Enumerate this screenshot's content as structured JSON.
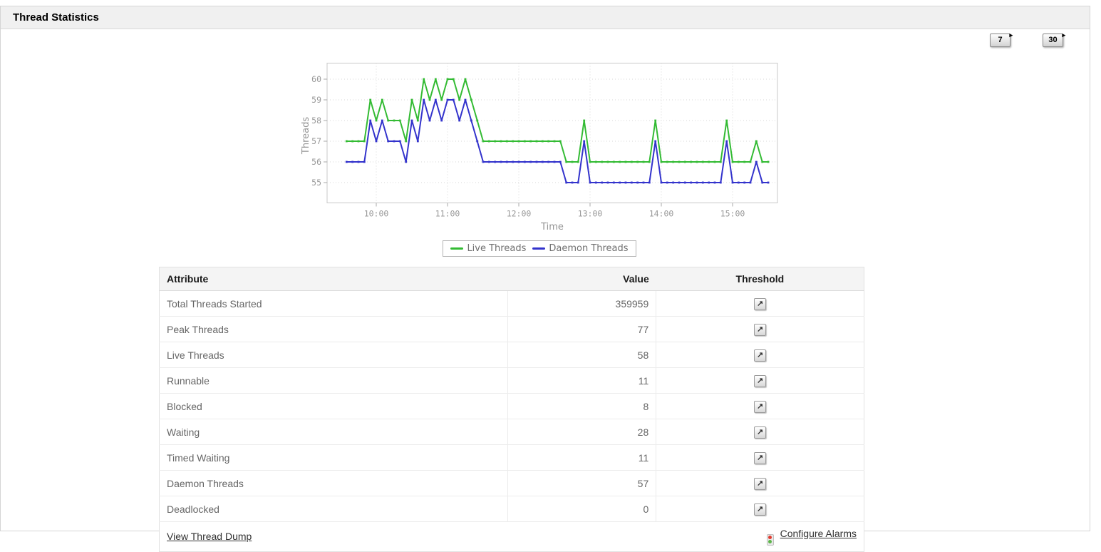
{
  "panel": {
    "title": "Thread Statistics",
    "history_buttons": [
      {
        "label": "7"
      },
      {
        "label": "30"
      }
    ]
  },
  "icons": {
    "history_arrow": "▸",
    "threshold": "↗"
  },
  "colors": {
    "alarm_red": "#e23b2e",
    "alarm_green": "#5cb54a"
  },
  "chart_data": {
    "type": "line",
    "title": "",
    "xlabel": "Time",
    "ylabel": "Threads",
    "grid": true,
    "legend_position": "bottom",
    "x_start": "09:35",
    "x_step_min": 5,
    "x_ticks": [
      "10:00",
      "11:00",
      "12:00",
      "13:00",
      "14:00",
      "15:00"
    ],
    "y_ticks": [
      55,
      56,
      57,
      58,
      59,
      60
    ],
    "ylim": [
      54.2,
      60.8
    ],
    "series": [
      {
        "name": "Live Threads",
        "color": "#33bb33",
        "values": [
          57,
          57,
          57,
          57,
          59,
          58,
          59,
          58,
          58,
          58,
          57,
          59,
          58,
          60,
          59,
          60,
          59,
          60,
          60,
          59,
          60,
          59,
          58,
          57,
          57,
          57,
          57,
          57,
          57,
          57,
          57,
          57,
          57,
          57,
          57,
          57,
          57,
          56,
          56,
          56,
          58,
          56,
          56,
          56,
          56,
          56,
          56,
          56,
          56,
          56,
          56,
          56,
          58,
          56,
          56,
          56,
          56,
          56,
          56,
          56,
          56,
          56,
          56,
          56,
          58,
          56,
          56,
          56,
          56,
          57,
          56,
          56
        ]
      },
      {
        "name": "Daemon Threads",
        "color": "#3333cc",
        "values": [
          56,
          56,
          56,
          56,
          58,
          57,
          58,
          57,
          57,
          57,
          56,
          58,
          57,
          59,
          58,
          59,
          58,
          59,
          59,
          58,
          59,
          58,
          57,
          56,
          56,
          56,
          56,
          56,
          56,
          56,
          56,
          56,
          56,
          56,
          56,
          56,
          56,
          55,
          55,
          55,
          57,
          55,
          55,
          55,
          55,
          55,
          55,
          55,
          55,
          55,
          55,
          55,
          57,
          55,
          55,
          55,
          55,
          55,
          55,
          55,
          55,
          55,
          55,
          55,
          57,
          55,
          55,
          55,
          55,
          56,
          55,
          55
        ]
      }
    ]
  },
  "table": {
    "headers": [
      "Attribute",
      "Value",
      "Threshold"
    ],
    "rows": [
      {
        "attribute": "Total Threads Started",
        "value": "359959"
      },
      {
        "attribute": "Peak Threads",
        "value": "77"
      },
      {
        "attribute": "Live Threads",
        "value": "58"
      },
      {
        "attribute": "Runnable",
        "value": "11"
      },
      {
        "attribute": "Blocked",
        "value": "8"
      },
      {
        "attribute": "Waiting",
        "value": "28"
      },
      {
        "attribute": "Timed Waiting",
        "value": "11"
      },
      {
        "attribute": "Daemon Threads",
        "value": "57"
      },
      {
        "attribute": "Deadlocked",
        "value": "0"
      }
    ],
    "footer": {
      "left_link": "View Thread Dump",
      "right_link": "Configure Alarms"
    }
  }
}
